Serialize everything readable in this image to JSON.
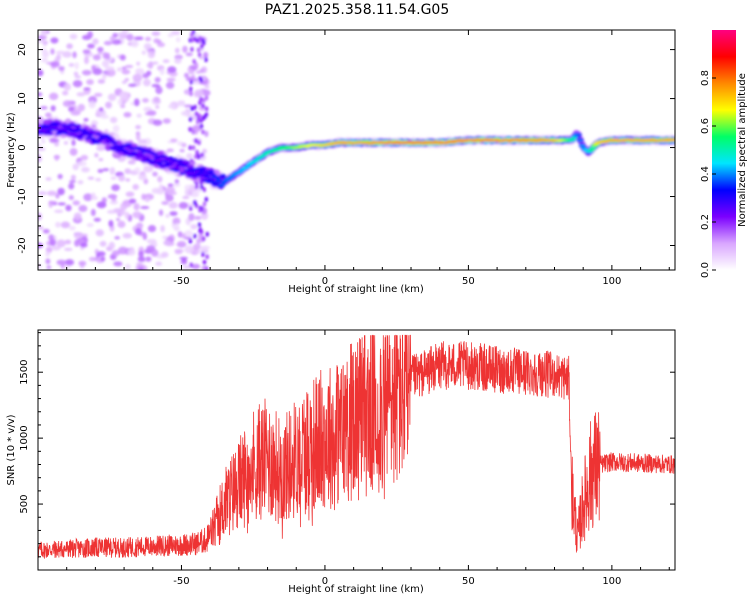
{
  "title": "PAZ1.2025.358.11.54.G05",
  "chart_data": [
    {
      "type": "heatmap",
      "xlabel": "Height of straight line (km)",
      "ylabel": "Frequency (Hz)",
      "xlim": [
        -100,
        122
      ],
      "ylim": [
        -25,
        24
      ],
      "xticks": [
        -50,
        0,
        50,
        100
      ],
      "yticks": [
        -20,
        -10,
        0,
        10,
        20
      ],
      "grid": false,
      "colorbar": {
        "label": "Normalized spectral amplitude",
        "range": [
          0,
          1
        ],
        "ticks": [
          0.0,
          0.2,
          0.4,
          0.6,
          0.8
        ],
        "colors": [
          "#ffffff",
          "#d9a6ff",
          "#7b00ff",
          "#0000ff",
          "#00e5ff",
          "#00ff66",
          "#ffff00",
          "#ff8800",
          "#ff0000",
          "#ff0080"
        ]
      },
      "ridge": {
        "x": [
          -90,
          -85,
          -75,
          -65,
          -55,
          -45,
          -40,
          -35,
          -30,
          -25,
          -20,
          -15,
          -10,
          -5,
          0,
          5,
          10,
          20,
          30,
          40,
          50,
          60,
          70,
          80,
          86,
          88,
          90,
          92,
          95,
          100,
          110,
          122
        ],
        "y": [
          4,
          3,
          1,
          -1,
          -3,
          -5,
          -6,
          -7,
          -5,
          -3,
          -1,
          0,
          0,
          0.5,
          0.5,
          1,
          1,
          1,
          1,
          1,
          1.5,
          1.5,
          1.5,
          1.5,
          1.5,
          3,
          0,
          -1,
          1,
          1.5,
          1.5,
          1.5
        ],
        "amplitude": [
          0.3,
          0.3,
          0.3,
          0.3,
          0.3,
          0.3,
          0.35,
          0.4,
          0.45,
          0.5,
          0.55,
          0.6,
          0.7,
          0.75,
          0.8,
          0.85,
          0.85,
          0.88,
          0.9,
          0.9,
          0.88,
          0.88,
          0.88,
          0.85,
          0.6,
          0.4,
          0.45,
          0.5,
          0.8,
          0.85,
          0.85,
          0.85
        ]
      },
      "noise_region_x": [
        -100,
        -41
      ]
    },
    {
      "type": "line",
      "xlabel": "Height of straight line (km)",
      "ylabel": "SNR (10 * v/v)",
      "xlim": [
        -100,
        122
      ],
      "ylim": [
        0,
        1820
      ],
      "xticks": [
        -50,
        0,
        50,
        100
      ],
      "yticks": [
        500,
        1000,
        1500
      ],
      "grid": false,
      "color": "#ee3333",
      "series": [
        {
          "name": "SNR",
          "x": [
            -100,
            -90,
            -80,
            -70,
            -60,
            -50,
            -45,
            -41,
            -38,
            -35,
            -30,
            -25,
            -20,
            -15,
            -10,
            -5,
            0,
            5,
            10,
            15,
            20,
            25,
            30,
            35,
            40,
            50,
            60,
            70,
            80,
            85,
            86,
            88,
            90,
            93,
            96,
            100,
            110,
            122
          ],
          "values": [
            150,
            160,
            170,
            170,
            180,
            190,
            200,
            230,
            350,
            500,
            650,
            800,
            850,
            750,
            850,
            950,
            1000,
            1050,
            1150,
            1200,
            1250,
            1350,
            1450,
            1500,
            1550,
            1550,
            1520,
            1500,
            1480,
            1450,
            600,
            250,
            500,
            750,
            800,
            820,
            810,
            800
          ]
        }
      ]
    }
  ]
}
